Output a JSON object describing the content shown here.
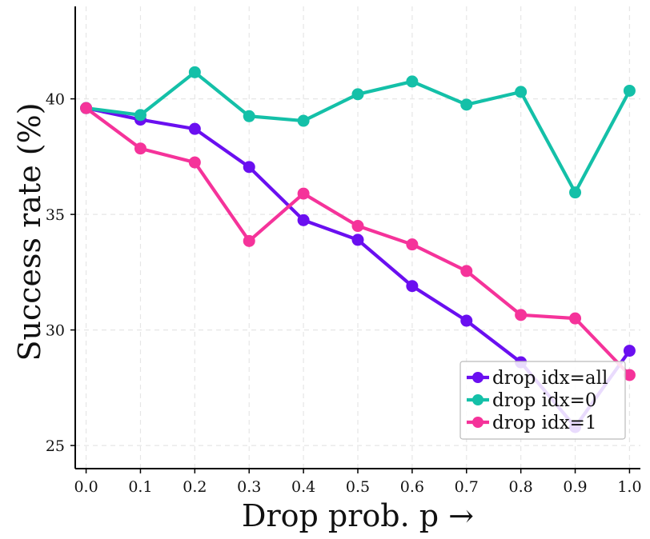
{
  "chart_data": {
    "type": "line",
    "title": "",
    "xlabel": "Drop prob. p →",
    "ylabel": "Success rate (%)",
    "x": [
      0.0,
      0.1,
      0.2,
      0.3,
      0.4,
      0.5,
      0.6,
      0.7,
      0.8,
      0.9,
      1.0
    ],
    "x_tick_labels": [
      "0.0",
      "0.1",
      "0.2",
      "0.3",
      "0.4",
      "0.5",
      "0.6",
      "0.7",
      "0.8",
      "0.9",
      "1.0"
    ],
    "y_ticks": [
      25,
      30,
      35,
      40
    ],
    "y_tick_labels": [
      "25",
      "30",
      "35",
      "40"
    ],
    "xlim": [
      -0.02,
      1.02
    ],
    "ylim": [
      24.0,
      44.0
    ],
    "grid": true,
    "legend_position": "bottom-right",
    "series": [
      {
        "name": "drop idx=all",
        "color": "#6a0ff0",
        "values": [
          39.6,
          39.1,
          38.7,
          37.05,
          34.75,
          33.9,
          31.9,
          30.4,
          28.6,
          25.8,
          29.1
        ]
      },
      {
        "name": "drop idx=0",
        "color": "#14c0a8",
        "values": [
          39.6,
          39.3,
          41.15,
          39.25,
          39.05,
          40.2,
          40.75,
          39.75,
          40.3,
          35.95,
          40.35
        ]
      },
      {
        "name": "drop idx=1",
        "color": "#f5339a",
        "values": [
          39.6,
          37.85,
          37.25,
          33.85,
          35.9,
          34.5,
          33.7,
          32.55,
          30.65,
          30.5,
          28.05
        ]
      }
    ]
  }
}
